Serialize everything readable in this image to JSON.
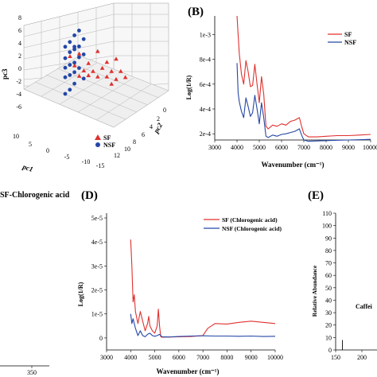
{
  "chart_data": [
    {
      "panel": "",
      "type": "scatter",
      "title": "",
      "xlabel": "pc1",
      "ylabel": "pc2",
      "zlabel": "pc3",
      "x_ticks": [
        "10",
        "5",
        "0",
        "-5",
        "-10",
        "-15"
      ],
      "y_ticks": [
        "12",
        "10",
        "8",
        "6",
        "4",
        "2",
        "0"
      ],
      "z_ticks": [
        "8",
        "6",
        "4",
        "2",
        "0",
        "-2",
        "-4",
        "-6"
      ],
      "zlim": [
        -6,
        8
      ],
      "legend": {
        "placement": "bottom-right",
        "entries": [
          "SF",
          "NSF"
        ]
      },
      "series": [
        {
          "name": "SF",
          "color": "#e0312f",
          "marker": "triangle",
          "points": [
            [
              6,
              3.6
            ],
            [
              10,
              3.0
            ],
            [
              2,
              2.6
            ],
            [
              8,
              2.2
            ],
            [
              0,
              1.9
            ],
            [
              4,
              1.4
            ],
            [
              11,
              1.2
            ],
            [
              7,
              1.1
            ],
            [
              9,
              0.9
            ],
            [
              1,
              0.6
            ],
            [
              12,
              0.4
            ],
            [
              5,
              0.3
            ],
            [
              3,
              0.1
            ],
            [
              8,
              -0.1
            ],
            [
              10,
              -0.2
            ],
            [
              6,
              -0.4
            ],
            [
              4,
              -0.5
            ],
            [
              2,
              -0.9
            ],
            [
              9,
              -1.1
            ]
          ]
        },
        {
          "name": "NSF",
          "color": "#2447a6",
          "marker": "circle",
          "points": [
            [
              3,
              6.4
            ],
            [
              2,
              5.5
            ],
            [
              4,
              5.2
            ],
            [
              1,
              4.3
            ],
            [
              3,
              3.9
            ],
            [
              2,
              3.7
            ],
            [
              0,
              3.4
            ],
            [
              2,
              3.3
            ],
            [
              4,
              2.8
            ],
            [
              1,
              2.7
            ],
            [
              3,
              2.2
            ],
            [
              0,
              1.6
            ],
            [
              2,
              1.2
            ],
            [
              1,
              0.7
            ],
            [
              3,
              0.5
            ],
            [
              0,
              0.1
            ],
            [
              2,
              -0.3
            ],
            [
              1,
              -0.9
            ],
            [
              4,
              -1.0
            ],
            [
              0,
              -1.4
            ],
            [
              2,
              -2.1
            ],
            [
              1,
              -3.2
            ],
            [
              0,
              -4.0
            ]
          ]
        }
      ]
    },
    {
      "panel": "(B)",
      "type": "line",
      "title": "",
      "xlabel": "Wavenumber (cm⁻¹)",
      "ylabel": "Log(1/R)",
      "xlim": [
        3000,
        10000
      ],
      "ylim": [
        0.00015,
        0.00115
      ],
      "x_ticks": [
        3000,
        4000,
        5000,
        6000,
        7000,
        8000,
        9000,
        10000
      ],
      "y_ticks": [
        0.0002,
        0.0004,
        0.0006,
        0.0008,
        0.001
      ],
      "y_tick_labels": [
        "2e-4",
        "4e-4",
        "6e-4",
        "8e-4",
        "1e-3"
      ],
      "x_tick_labels": [
        "3000",
        "4000",
        "5000",
        "6000",
        "7000",
        "8000",
        "9000",
        "10000"
      ],
      "legend": {
        "placement": "top-right",
        "entries": [
          "SF",
          "NSF"
        ]
      },
      "series": [
        {
          "name": "SF",
          "color": "#e0312f",
          "x": [
            4000,
            4100,
            4200,
            4300,
            4400,
            4500,
            4600,
            4700,
            4800,
            4900,
            5000,
            5100,
            5200,
            5300,
            5400,
            5600,
            5800,
            6000,
            6200,
            6400,
            6600,
            6800,
            6900,
            7000,
            7200,
            7600,
            8000,
            8500,
            9000,
            9500,
            10000
          ],
          "y": [
            0.0012,
            0.00085,
            0.00068,
            0.0006,
            0.00079,
            0.0007,
            0.00058,
            0.00059,
            0.00076,
            0.0006,
            0.00045,
            0.00066,
            0.00052,
            0.00026,
            0.00024,
            0.00027,
            0.00026,
            0.00028,
            0.00027,
            0.0003,
            0.00031,
            0.00033,
            0.00026,
            0.0002,
            0.000175,
            0.000175,
            0.00018,
            0.000185,
            0.000185,
            0.00019,
            0.000195
          ]
        },
        {
          "name": "NSF",
          "color": "#2447a6",
          "x": [
            4000,
            4050,
            4100,
            4200,
            4300,
            4400,
            4500,
            4600,
            4700,
            4800,
            4900,
            5000,
            5100,
            5200,
            5300,
            5400,
            5600,
            5800,
            6000,
            6200,
            6400,
            6600,
            6800,
            6900,
            7000,
            7200,
            7600,
            8000,
            8500,
            9000,
            9500,
            10000
          ],
          "y": [
            0.00077,
            0.00053,
            0.00046,
            0.00038,
            0.00033,
            0.00049,
            0.00042,
            0.00034,
            0.00037,
            0.00051,
            0.0004,
            0.00028,
            0.00045,
            0.00033,
            0.00018,
            0.00017,
            0.00019,
            0.00018,
            0.000195,
            0.0002,
            0.00021,
            0.00022,
            0.00024,
            0.00019,
            0.00015,
            0.00014,
            0.000142,
            0.000145,
            0.000148,
            0.00015,
            0.000152,
            0.000155
          ]
        }
      ]
    },
    {
      "panel": "",
      "type": "line",
      "title": "SF-Chlorogenic acid",
      "x_tick_labels": [
        "350"
      ]
    },
    {
      "panel": "(D)",
      "type": "line",
      "title": "",
      "xlabel": "Wavenumber (cm⁻¹)",
      "ylabel": "Log(1/R)",
      "xlim": [
        3000,
        10000
      ],
      "ylim": [
        -5e-06,
        5.2e-05
      ],
      "x_ticks": [
        3000,
        4000,
        5000,
        6000,
        7000,
        8000,
        9000,
        10000
      ],
      "x_tick_labels": [
        "3000",
        "4000",
        "5000",
        "6000",
        "7000",
        "8000",
        "9000",
        "10000"
      ],
      "y_ticks": [
        0,
        1e-05,
        2e-05,
        3e-05,
        4e-05,
        5e-05
      ],
      "y_tick_labels": [
        "0",
        "1e-5",
        "2e-5",
        "3e-5",
        "4e-5",
        "5e-5"
      ],
      "legend": {
        "placement": "top-right",
        "entries": [
          "SF (Chlorogenic acid)",
          "NSF (Chlorogenic acid)"
        ]
      },
      "series": [
        {
          "name": "SF (Chlorogenic acid)",
          "color": "#e0312f",
          "x": [
            4000,
            4050,
            4100,
            4150,
            4200,
            4300,
            4400,
            4500,
            4600,
            4700,
            4750,
            4800,
            4900,
            5000,
            5100,
            5150,
            5200,
            5250,
            5300,
            5600,
            6000,
            6500,
            7000,
            7200,
            7500,
            8000,
            8500,
            9000,
            9500,
            10000
          ],
          "y": [
            4.1e-05,
            3e-05,
            1.5e-05,
            1.8e-05,
            1.1e-05,
            6e-06,
            1.1e-05,
            7e-06,
            3e-06,
            6e-06,
            9e-06,
            5e-06,
            3e-06,
            2e-06,
            5e-06,
            1.2e-05,
            5e-06,
            5e-07,
            3e-07,
            4e-07,
            5e-07,
            6e-07,
            1e-06,
            4e-06,
            6e-06,
            5.8e-06,
            6.5e-06,
            7e-06,
            6.5e-06,
            6e-06
          ]
        },
        {
          "name": "NSF (Chlorogenic acid)",
          "color": "#2447a6",
          "x": [
            4000,
            4050,
            4100,
            4200,
            4300,
            4400,
            4500,
            4600,
            4700,
            4800,
            4900,
            5000,
            5100,
            5200,
            5300,
            5600,
            6000,
            6500,
            7000,
            7500,
            8000,
            8500,
            9000,
            9500,
            10000
          ],
          "y": [
            1e-05,
            6e-06,
            8e-06,
            4e-06,
            1e-06,
            3e-06,
            1e-06,
            5e-07,
            1.5e-06,
            2e-06,
            1e-06,
            7e-07,
            1e-06,
            1.5e-06,
            5e-07,
            4e-07,
            6e-07,
            8e-07,
            9e-07,
            8e-07,
            8e-07,
            7e-07,
            8e-07,
            6e-07,
            7e-07
          ]
        }
      ]
    },
    {
      "panel": "(E)",
      "type": "bar",
      "title": "",
      "ylabel": "Relative Abundance",
      "ylim": [
        0,
        110
      ],
      "y_ticks": [
        0,
        10,
        20,
        30,
        40,
        50,
        60,
        70,
        80,
        90,
        100,
        110
      ],
      "y_tick_labels": [
        "0",
        "10",
        "20",
        "30",
        "40",
        "50",
        "60",
        "70",
        "80",
        "90",
        "100",
        "110"
      ],
      "x_tick_labels": [
        "150",
        "200"
      ],
      "annotation": "Caffei",
      "values": [
        {
          "x": 163,
          "y": 8
        }
      ]
    }
  ]
}
